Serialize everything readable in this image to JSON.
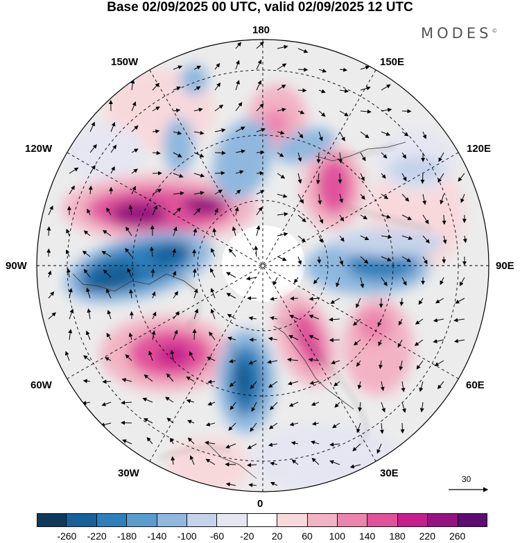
{
  "title": "Base 02/09/2025 00 UTC, valid 02/09/2025 12 UTC",
  "brand": {
    "name": "MODES",
    "mark": "©"
  },
  "longitude_labels": {
    "north": "180",
    "south": "0",
    "west": "90W",
    "east": "90E",
    "nw1": "150W",
    "nw2": "120W",
    "ne1": "150E",
    "ne2": "120E",
    "sw1": "60W",
    "sw2": "30W",
    "se1": "60E",
    "se2": "30E"
  },
  "wind_scale": {
    "label": "30"
  },
  "colorbar": {
    "colors": [
      "#0f3a5c",
      "#17609a",
      "#2e7fba",
      "#5a9cce",
      "#90b8de",
      "#c4d3ea",
      "#e6e6f3",
      "#ffffff",
      "#f7d9dc",
      "#f2b3c4",
      "#ec85ad",
      "#e0529b",
      "#c61f8c",
      "#95137e",
      "#5d0c73"
    ],
    "ticks": [
      "-260",
      "-220",
      "-180",
      "-140",
      "-100",
      "-60",
      "-20",
      "20",
      "60",
      "100",
      "140",
      "180",
      "220",
      "260"
    ]
  },
  "anomaly_centers": [
    {
      "id": "low-north-atlantic-west",
      "sign": "negative",
      "level": "-220"
    },
    {
      "id": "high-north-america",
      "sign": "positive",
      "level": "220"
    },
    {
      "id": "high-north-atlantic",
      "sign": "positive",
      "level": "180"
    },
    {
      "id": "low-europe-west",
      "sign": "negative",
      "level": "-180"
    },
    {
      "id": "high-scandinavia",
      "sign": "positive",
      "level": "140"
    },
    {
      "id": "high-west-siberia",
      "sign": "positive",
      "level": "100"
    },
    {
      "id": "low-siberia",
      "sign": "negative",
      "level": "-140"
    },
    {
      "id": "high-east-siberia",
      "sign": "positive",
      "level": "140"
    },
    {
      "id": "low-bering",
      "sign": "negative",
      "level": "-100"
    },
    {
      "id": "high-north-pacific",
      "sign": "positive",
      "level": "100"
    },
    {
      "id": "low-alaska",
      "sign": "negative",
      "level": "-60"
    }
  ]
}
